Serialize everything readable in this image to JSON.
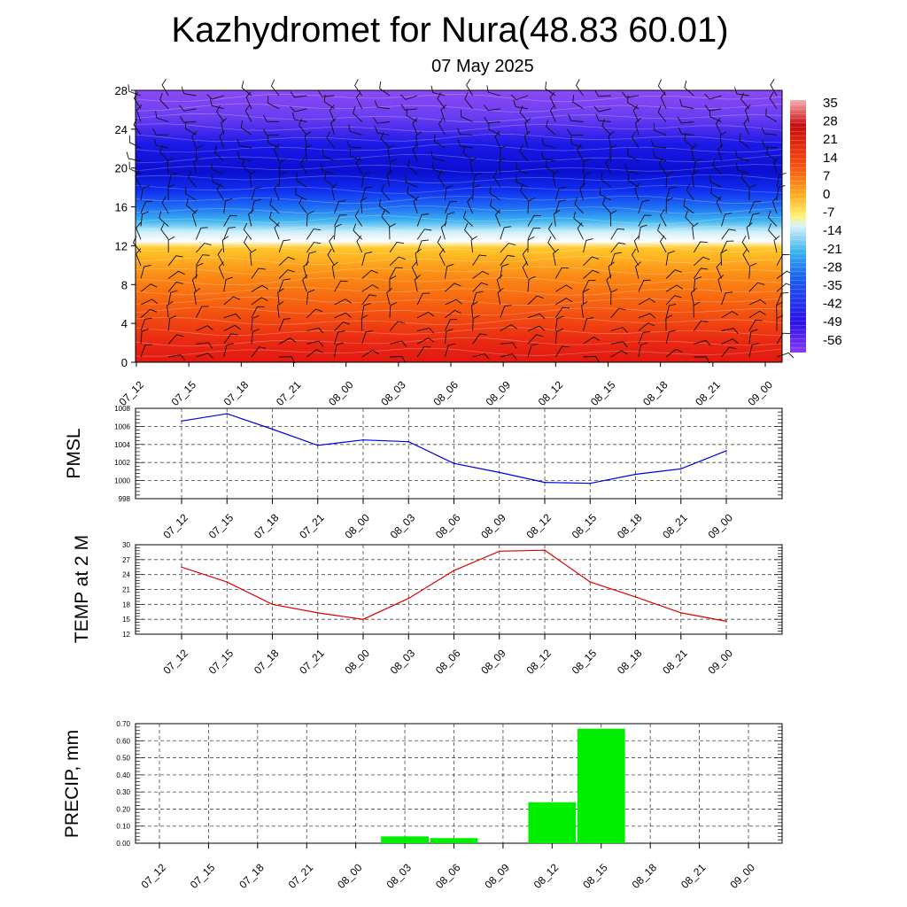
{
  "header": {
    "title": "Kazhydromet for Nura(48.83 60.01)",
    "subtitle": "07 May 2025"
  },
  "chart_data": [
    {
      "type": "heatmap",
      "title": "",
      "x": [
        "07_12",
        "07_15",
        "07_18",
        "07_21",
        "08_00",
        "08_03",
        "08_06",
        "08_09",
        "08_12",
        "08_15",
        "08_18",
        "08_21",
        "09_00"
      ],
      "yticks": [
        0,
        4,
        8,
        12,
        16,
        20,
        24,
        28
      ],
      "ylim": [
        0,
        28
      ],
      "colorbar_labels": [
        "35",
        "28",
        "21",
        "14",
        "7",
        "0",
        "-7",
        "-14",
        "-21",
        "-28",
        "-35",
        "-42",
        "-49",
        "-56"
      ],
      "overlay": "wind barbs",
      "colors": {
        "warm": "#e41a1c",
        "zero": "#fff27a",
        "cold": "#1a00f0",
        "top": "#8f3cf0"
      }
    },
    {
      "type": "line",
      "ylabel": "PMSL",
      "categories": [
        "07_12",
        "07_15",
        "07_18",
        "07_21",
        "08_00",
        "08_03",
        "08_06",
        "08_09",
        "08_12",
        "08_15",
        "08_18",
        "08_21",
        "09_00"
      ],
      "values": [
        1006.6,
        1007.4,
        1005.7,
        1003.9,
        1004.5,
        1004.3,
        1001.9,
        1000.9,
        999.8,
        999.7,
        1000.7,
        1001.3,
        1003.3
      ],
      "ylim": [
        998,
        1008
      ],
      "yticks": [
        "998",
        "1000",
        "1002",
        "1004",
        "1006",
        "1008"
      ],
      "color": "#0000dd",
      "grid": true
    },
    {
      "type": "line",
      "ylabel": "TEMP at 2 M",
      "categories": [
        "07_12",
        "07_15",
        "07_18",
        "07_21",
        "08_00",
        "08_03",
        "08_06",
        "08_09",
        "08_12",
        "08_15",
        "08_18",
        "08_21",
        "09_00"
      ],
      "values": [
        25.5,
        22.5,
        18.0,
        16.3,
        15.0,
        19.2,
        24.8,
        28.7,
        28.9,
        22.5,
        19.5,
        16.3,
        14.6
      ],
      "ylim": [
        12,
        30
      ],
      "yticks": [
        "12",
        "15",
        "18",
        "21",
        "24",
        "27",
        "30"
      ],
      "color": "#dd0000",
      "grid": true
    },
    {
      "type": "bar",
      "ylabel": "PRECIP, mm",
      "categories": [
        "07_12",
        "07_15",
        "07_18",
        "07_21",
        "08_00",
        "08_03",
        "08_06",
        "08_09",
        "08_12",
        "08_15",
        "08_18",
        "08_21",
        "09_00"
      ],
      "values": [
        0,
        0,
        0,
        0,
        0,
        0.04,
        0.03,
        0,
        0.24,
        0.67,
        0,
        0,
        0
      ],
      "ylim": [
        0,
        0.7
      ],
      "yticks": [
        "0.00",
        "0.10",
        "0.20",
        "0.30",
        "0.40",
        "0.50",
        "0.60",
        "0.70"
      ],
      "color": "#00ee00",
      "grid": true
    }
  ]
}
